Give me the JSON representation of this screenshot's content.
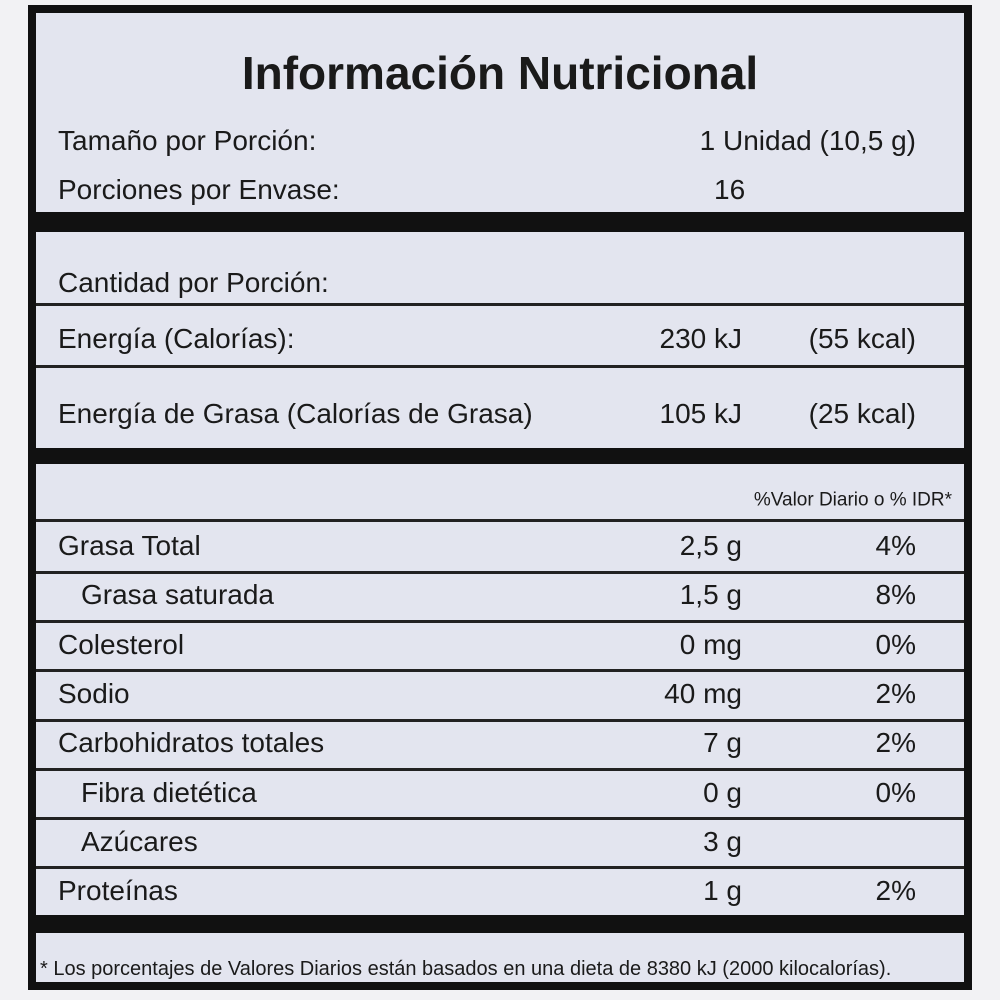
{
  "title": "Información Nutricional",
  "serving": [
    {
      "label": "Tamaño por Porción:",
      "value": "1 Unidad (10,5 g)"
    },
    {
      "label": "Porciones por Envase:",
      "value": "16"
    }
  ],
  "amount_header": "Cantidad por Porción:",
  "energy": [
    {
      "label": "Energía (Calorías):",
      "kj": "230 kJ",
      "kcal": "(55 kcal)"
    },
    {
      "label": "Energía de Grasa (Calorías de Grasa)",
      "kj": "105 kJ",
      "kcal": "(25 kcal)"
    }
  ],
  "dv_header": "%Valor Diario o % IDR*",
  "nutrients": [
    {
      "name": "Grasa Total",
      "amount": "2,5 g",
      "dv": "4%"
    },
    {
      "name": "Grasa saturada",
      "amount": "1,5 g",
      "dv": "8%",
      "sub": true
    },
    {
      "name": "Colesterol",
      "amount": "0 mg",
      "dv": "0%"
    },
    {
      "name": "Sodio",
      "amount": "40 mg",
      "dv": "2%"
    },
    {
      "name": "Carbohidratos totales",
      "amount": "7 g",
      "dv": "2%"
    },
    {
      "name": "Fibra dietética",
      "amount": "0 g",
      "dv": "0%",
      "sub": true
    },
    {
      "name": "Azúcares",
      "amount": "3 g",
      "sub": true
    },
    {
      "name": "Proteínas",
      "amount": "1 g",
      "dv": "2%"
    }
  ],
  "footnote": "* Los porcentajes de Valores Diarios están basados en una dieta de 8380 kJ (2000 kilocalorías)."
}
